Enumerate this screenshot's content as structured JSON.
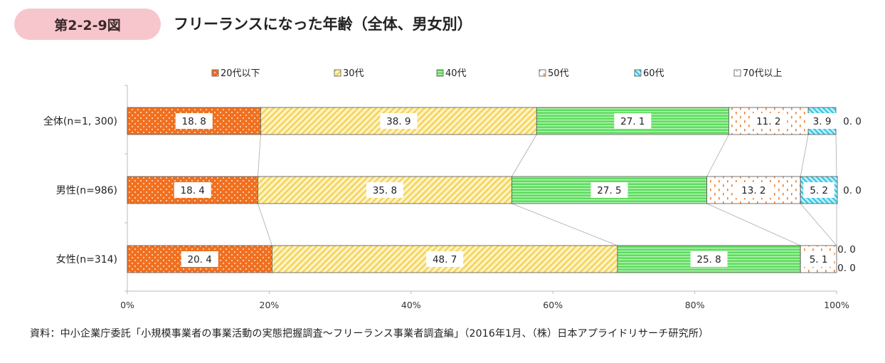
{
  "figure_number": "第2-2-9図",
  "title": "フリーランスになった年齢（全体、男女別）",
  "source": "資料：中小企業庁委託「小規模事業者の事業活動の実態把握調査～フリーランス事業者調査編」（2016年1月、（株）日本アプライドリサーチ研究所）",
  "chart_data": {
    "type": "bar",
    "orientation": "horizontal",
    "stacked": true,
    "percent_stacked": true,
    "categories": [
      "全体(n=1, 300)",
      "男性(n=986)",
      "女性(n=314)"
    ],
    "series": [
      {
        "name": "20代以下",
        "values": [
          18.8,
          18.4,
          20.4
        ],
        "labels": [
          "18. 8",
          "18. 4",
          "20. 4"
        ],
        "color": "#f07020",
        "pattern": "dots"
      },
      {
        "name": "30代",
        "values": [
          38.9,
          35.8,
          48.7
        ],
        "labels": [
          "38. 9",
          "35. 8",
          "48. 7"
        ],
        "color": "#fde9a0",
        "pattern": "diagonal"
      },
      {
        "name": "40代",
        "values": [
          27.1,
          27.5,
          25.8
        ],
        "labels": [
          "27. 1",
          "27. 5",
          "25. 8"
        ],
        "color": "#66e066",
        "pattern": "horizontal"
      },
      {
        "name": "50代",
        "values": [
          11.2,
          13.2,
          5.1
        ],
        "labels": [
          "11. 2",
          "13. 2",
          "5. 1"
        ],
        "color": "#ffffff",
        "pattern": "orange-dashes"
      },
      {
        "name": "60代",
        "values": [
          3.9,
          5.2,
          0.0
        ],
        "labels": [
          "3. 9",
          "5. 2",
          "0. 0"
        ],
        "color": "#66ddf0",
        "pattern": "diagonal-blue"
      },
      {
        "name": "70代以上",
        "values": [
          0.0,
          0.0,
          0.0
        ],
        "labels": [
          "0. 0",
          "0. 0",
          "0. 0"
        ],
        "color": "#ffffff",
        "pattern": "sparse-dots"
      }
    ],
    "x_ticks": [
      "0%",
      "20%",
      "40%",
      "60%",
      "80%",
      "100%"
    ],
    "xlim": [
      0,
      100
    ],
    "legend_position": "top",
    "grid": false,
    "connector_lines": true
  }
}
